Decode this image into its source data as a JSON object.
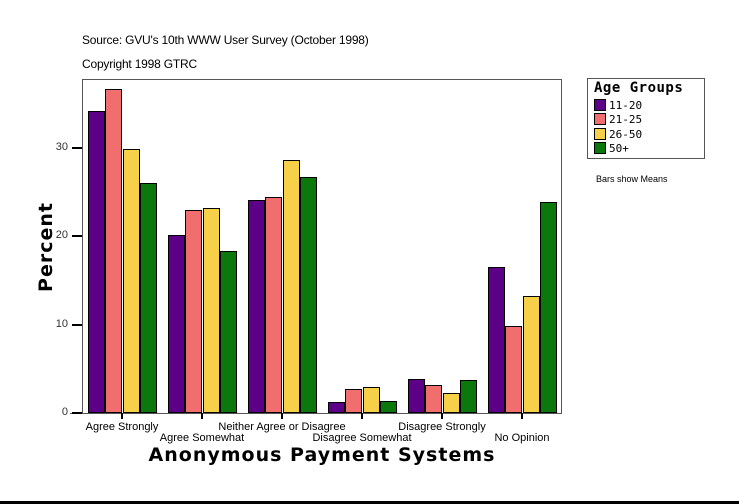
{
  "header": {
    "source": "Source: GVU's 10th WWW User Survey (October 1998)",
    "copyright": "Copyright 1998 GTRC"
  },
  "legend": {
    "title": "Age Groups",
    "items": [
      {
        "label": "11-20",
        "color": "#5c0087"
      },
      {
        "label": "21-25",
        "color": "#f06e6e"
      },
      {
        "label": "26-50",
        "color": "#f7d04a"
      },
      {
        "label": "50+",
        "color": "#0a780a"
      }
    ]
  },
  "note": "Bars show Means",
  "axes": {
    "ylabel": "Percent",
    "xlabel": "Anonymous Payment Systems",
    "yticks": [
      "0",
      "10",
      "20",
      "30"
    ]
  },
  "chart_data": {
    "type": "bar",
    "title": "",
    "subtitle": "Source: GVU's 10th WWW User Survey (October 1998) / Copyright 1998 GTRC",
    "xlabel": "Anonymous Payment Systems",
    "ylabel": "Percent",
    "ylim": [
      0,
      37.8
    ],
    "yticks": [
      0,
      10,
      20,
      30
    ],
    "grid": false,
    "legend_title": "Age Groups",
    "legend_position": "right",
    "annotations": [
      "Bars show Means"
    ],
    "categories": [
      "Agree Strongly",
      "Agree Somewhat",
      "Neither Agree or Disagree",
      "Disagree Somewhat",
      "Disagree Strongly",
      "No Opinion"
    ],
    "series": [
      {
        "name": "11-20",
        "color": "#5c0087",
        "values": [
          34.2,
          20.2,
          24.1,
          1.3,
          3.8,
          16.5
        ]
      },
      {
        "name": "21-25",
        "color": "#f06e6e",
        "values": [
          36.7,
          23.0,
          24.5,
          2.7,
          3.2,
          9.8
        ]
      },
      {
        "name": "26-50",
        "color": "#f7d04a",
        "values": [
          29.9,
          23.2,
          28.6,
          2.9,
          2.3,
          13.2
        ]
      },
      {
        "name": "50+",
        "color": "#0a780a",
        "values": [
          26.0,
          18.3,
          26.7,
          1.4,
          3.7,
          23.9
        ]
      }
    ]
  }
}
